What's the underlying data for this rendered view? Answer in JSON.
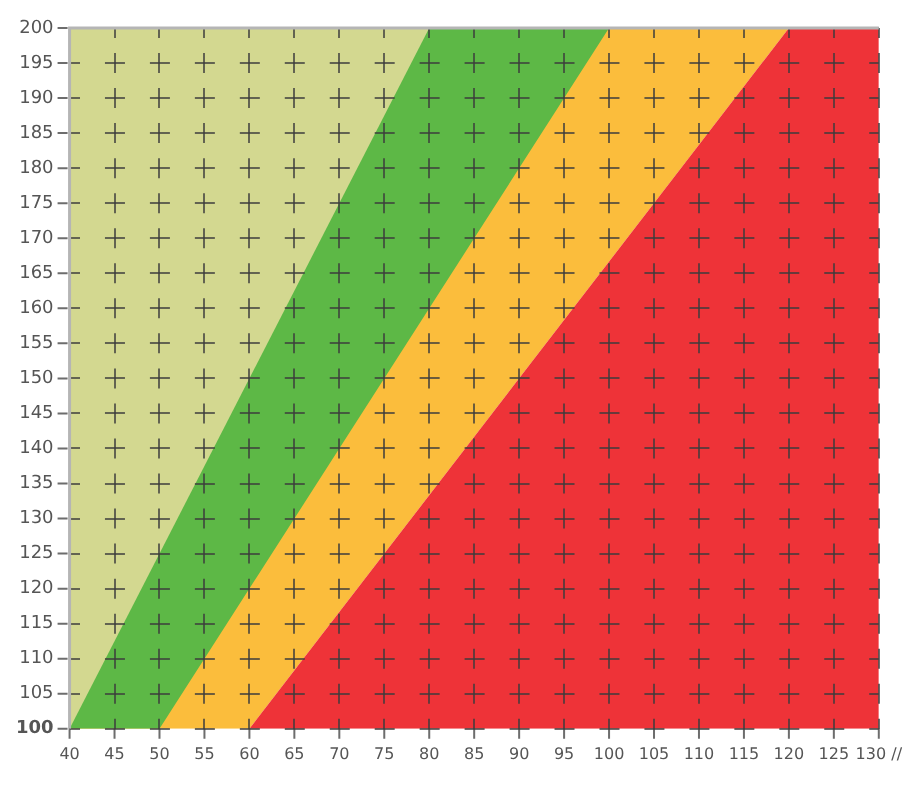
{
  "chart_data": {
    "type": "area",
    "series": [
      {
        "color": "#ee3338",
        "x": [
          60,
          120,
          130
        ],
        "values": [
          100,
          200,
          200
        ]
      },
      {
        "color": "#d3d890",
        "x": [
          40,
          80
        ],
        "values": [
          100,
          200
        ]
      },
      {
        "color": "#5db846",
        "x": [
          40,
          40,
          50,
          100
        ],
        "values": [
          200,
          100,
          100,
          200
        ]
      },
      {
        "color": "#fbbd3c",
        "x": [
          40,
          40,
          60,
          120
        ],
        "values": [
          200,
          100,
          100,
          200
        ]
      }
    ],
    "xlim": [
      40,
      130
    ],
    "ylim": [
      100,
      200
    ],
    "xticks": [
      40,
      45,
      50,
      55,
      60,
      65,
      70,
      75,
      80,
      85,
      90,
      95,
      100,
      105,
      110,
      115,
      120,
      125,
      {
        "value": 130,
        "label": "130 //"
      }
    ],
    "yticks": [
      100,
      105,
      110,
      115,
      120,
      125,
      130,
      135,
      140,
      145,
      150,
      155,
      160,
      165,
      170,
      175,
      180,
      185,
      190,
      195,
      200
    ],
    "grid": true,
    "legend": false
  }
}
